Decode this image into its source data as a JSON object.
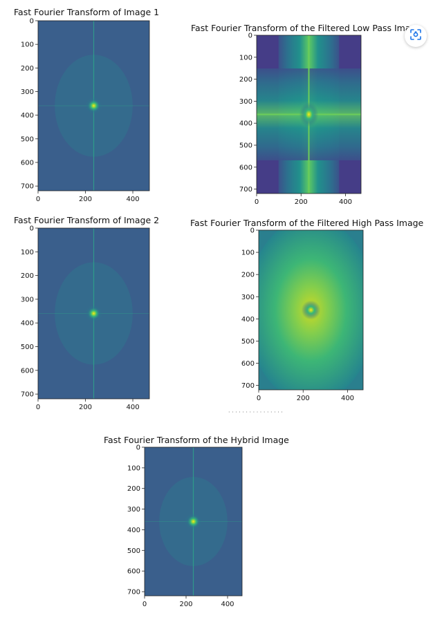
{
  "colors": {
    "background": "#3a5f8c",
    "lowpass_background": "#453d87",
    "center_bright": "#d8e219",
    "line": "#2fa78a"
  },
  "lens_button": {
    "icon": "lens-scan-icon"
  },
  "caption_fragment": "· · · · · · · · · · · · · · · ·",
  "chart_data": [
    {
      "type": "heatmap",
      "title": "Fast Fourier Transform of Image 1",
      "colormap": "viridis",
      "xlim": [
        0,
        470
      ],
      "ylim": [
        720,
        0
      ],
      "xticks": [
        0,
        200,
        400
      ],
      "yticks": [
        0,
        100,
        200,
        300,
        400,
        500,
        600,
        700
      ],
      "peak": [
        235,
        360
      ]
    },
    {
      "type": "heatmap",
      "title": "Fast Fourier Transform of the Filtered Low Pass Image",
      "colormap": "viridis",
      "xlim": [
        0,
        470
      ],
      "ylim": [
        720,
        0
      ],
      "xticks": [
        0,
        200,
        400
      ],
      "yticks": [
        0,
        100,
        200,
        300,
        400,
        500,
        600,
        700
      ],
      "peak": [
        235,
        360
      ]
    },
    {
      "type": "heatmap",
      "title": "Fast Fourier Transform of Image 2",
      "colormap": "viridis",
      "xlim": [
        0,
        470
      ],
      "ylim": [
        720,
        0
      ],
      "xticks": [
        0,
        200,
        400
      ],
      "yticks": [
        0,
        100,
        200,
        300,
        400,
        500,
        600,
        700
      ],
      "peak": [
        235,
        360
      ]
    },
    {
      "type": "heatmap",
      "title": "Fast Fourier Transform of the Filtered High Pass Image",
      "colormap": "viridis",
      "xlim": [
        0,
        470
      ],
      "ylim": [
        720,
        0
      ],
      "xticks": [
        0,
        200,
        400
      ],
      "yticks": [
        0,
        100,
        200,
        300,
        400,
        500,
        600,
        700
      ],
      "peak": [
        235,
        360
      ]
    },
    {
      "type": "heatmap",
      "title": "Fast Fourier Transform of the Hybrid Image",
      "colormap": "viridis",
      "xlim": [
        0,
        470
      ],
      "ylim": [
        720,
        0
      ],
      "xticks": [
        0,
        200,
        400
      ],
      "yticks": [
        0,
        100,
        200,
        300,
        400,
        500,
        600,
        700
      ],
      "peak": [
        235,
        360
      ]
    }
  ]
}
